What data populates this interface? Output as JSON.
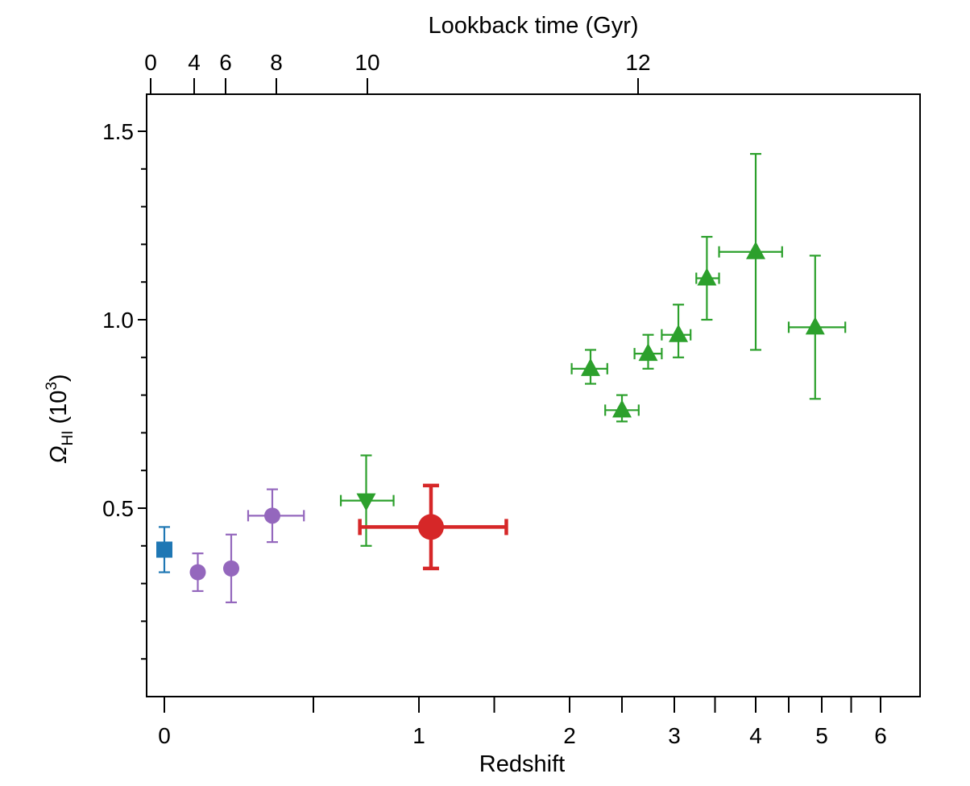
{
  "chart_data": {
    "type": "scatter",
    "xlabel": "Redshift",
    "x2label": "Lookback time (Gyr)",
    "ylabel": "Ω",
    "ylabel_sub": "HI",
    "ylabel_unit": "(10",
    "ylabel_sup": "3",
    "ylabel_close": ")",
    "y_ticks": [
      "0.5",
      "1.0",
      "1.5"
    ],
    "x_ticks": [
      "0",
      "1",
      "2",
      "3",
      "4",
      "5",
      "6"
    ],
    "x2_ticks": [
      "0",
      "4",
      "6",
      "8",
      "10",
      "12"
    ],
    "series": [
      {
        "marker": "square",
        "color": "#1f77b4",
        "size": "small",
        "points": [
          {
            "x": 0.0,
            "y": 0.39,
            "ylo": 0.33,
            "yhi": 0.45
          }
        ]
      },
      {
        "marker": "circle",
        "color": "#9467bd",
        "size": "small",
        "points": [
          {
            "x": 0.1,
            "y": 0.33,
            "ylo": 0.28,
            "yhi": 0.38
          },
          {
            "x": 0.2,
            "y": 0.34,
            "ylo": 0.25,
            "yhi": 0.43
          },
          {
            "x": 0.37,
            "y": 0.48,
            "ylo": 0.41,
            "yhi": 0.55,
            "xlo": 0.27,
            "xhi": 0.47
          }
        ]
      },
      {
        "marker": "triangle-down",
        "color": "#2ca02c",
        "size": "small",
        "points": [
          {
            "x": 0.75,
            "y": 0.52,
            "ylo": 0.4,
            "yhi": 0.64,
            "xlo": 0.63,
            "xhi": 0.88
          }
        ]
      },
      {
        "marker": "circle",
        "color": "#d62728",
        "size": "large",
        "points": [
          {
            "x": 1.08,
            "y": 0.45,
            "ylo": 0.34,
            "yhi": 0.56,
            "xlo": 0.72,
            "xhi": 1.58
          }
        ]
      },
      {
        "marker": "triangle-up",
        "color": "#2ca02c",
        "size": "small",
        "points": [
          {
            "x": 2.2,
            "y": 0.87,
            "ylo": 0.83,
            "yhi": 0.92,
            "xlo": 2.02,
            "xhi": 2.36
          },
          {
            "x": 2.5,
            "y": 0.76,
            "ylo": 0.73,
            "yhi": 0.8,
            "xlo": 2.34,
            "xhi": 2.66
          },
          {
            "x": 2.75,
            "y": 0.91,
            "ylo": 0.87,
            "yhi": 0.96,
            "xlo": 2.62,
            "xhi": 2.88
          },
          {
            "x": 3.05,
            "y": 0.96,
            "ylo": 0.9,
            "yhi": 1.04,
            "xlo": 2.88,
            "xhi": 3.2
          },
          {
            "x": 3.4,
            "y": 1.11,
            "ylo": 1.0,
            "yhi": 1.22,
            "xlo": 3.27,
            "xhi": 3.55
          },
          {
            "x": 4.0,
            "y": 1.18,
            "ylo": 0.92,
            "yhi": 1.44,
            "xlo": 3.55,
            "xhi": 4.4
          },
          {
            "x": 4.9,
            "y": 0.98,
            "ylo": 0.79,
            "yhi": 1.17,
            "xlo": 4.5,
            "xhi": 5.4
          }
        ]
      }
    ]
  }
}
